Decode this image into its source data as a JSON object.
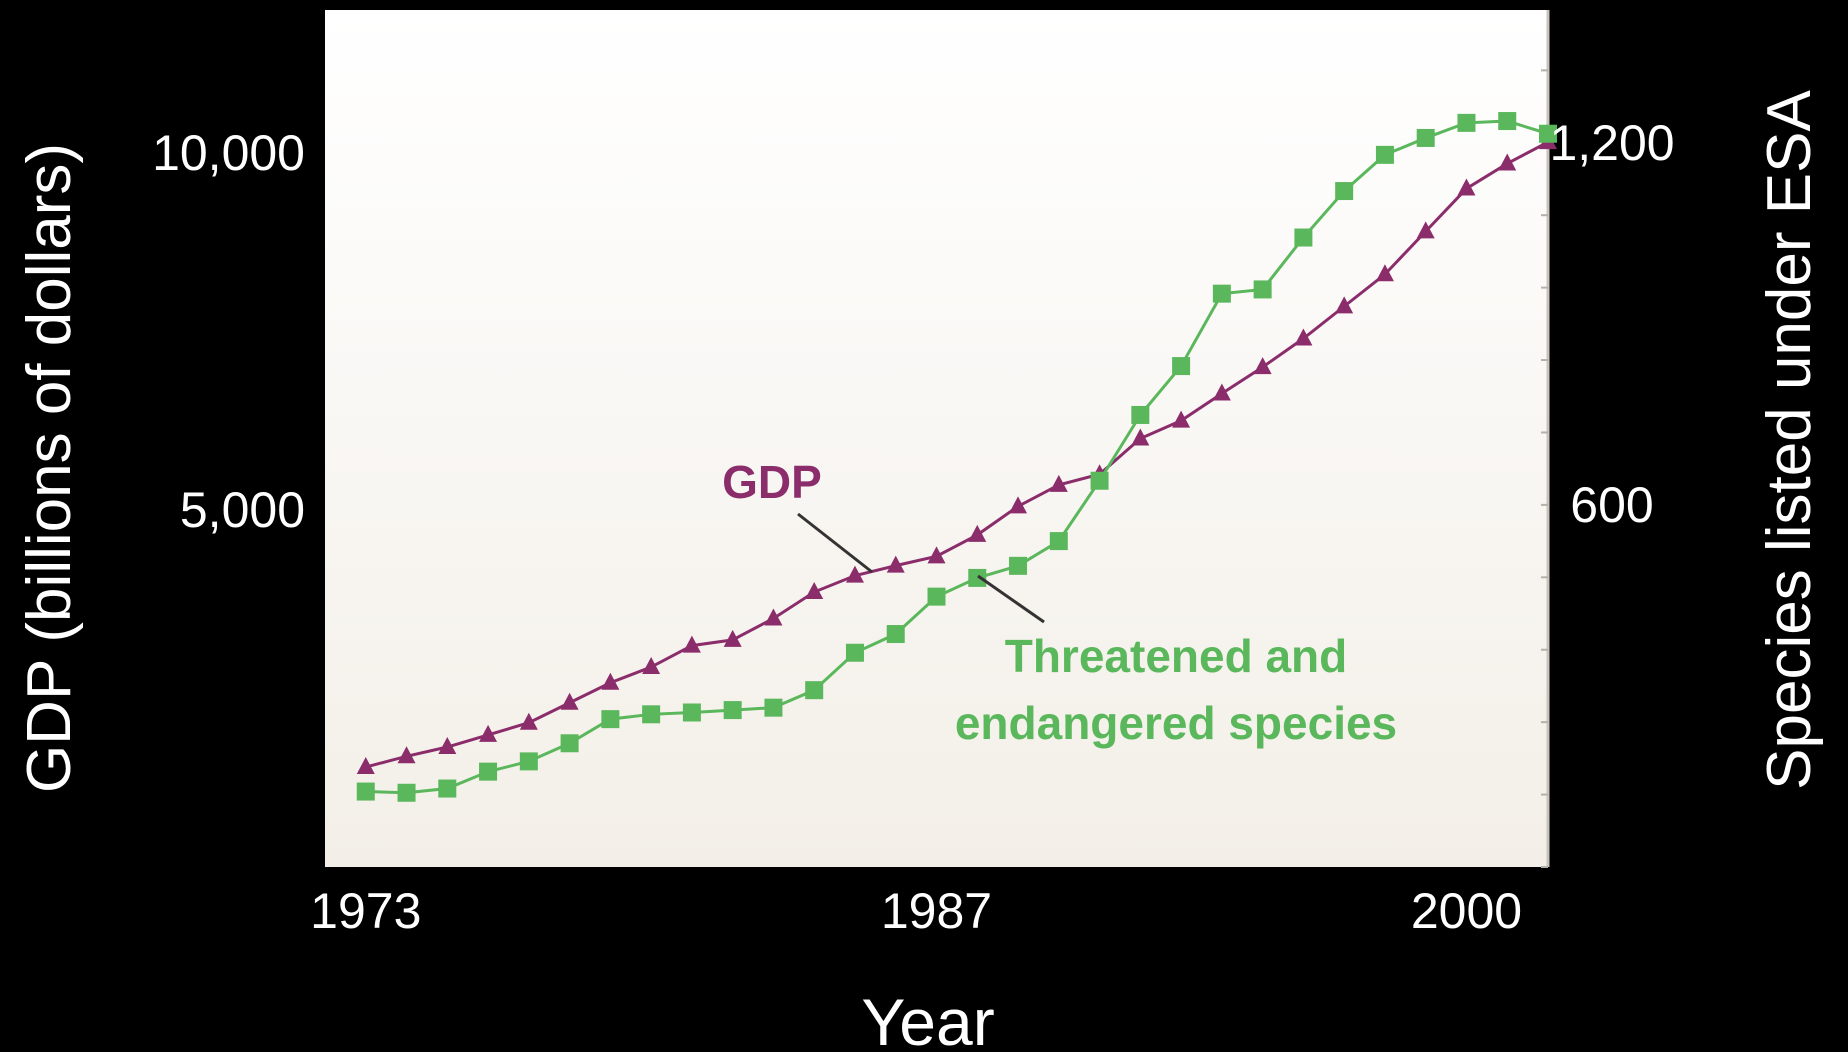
{
  "chart_data": {
    "type": "line",
    "xlabel": "Year",
    "ylabel_left": "GDP (billions of dollars)",
    "ylabel_right": "Species listed under ESA",
    "x_ticks": [
      "1973",
      "1987",
      "2000"
    ],
    "x_tick_values": [
      1973,
      1987,
      2000
    ],
    "xlim": [
      1972,
      2002
    ],
    "y_left_ticks": [
      "5,000",
      "10,000"
    ],
    "y_left_tick_values": [
      5000,
      10000
    ],
    "ylim_left": [
      0,
      12000
    ],
    "y_right_ticks": [
      "600",
      "1,200"
    ],
    "y_right_tick_values": [
      600,
      1200
    ],
    "ylim_right": [
      0,
      1420
    ],
    "grid": false,
    "legend": "none",
    "colors": {
      "gdp": "#8b2c6b",
      "species": "#5bb75b",
      "plot_bg_top": "#ffffff",
      "plot_bg_bottom": "#f3efe8"
    },
    "x": [
      1973,
      1974,
      1975,
      1976,
      1977,
      1978,
      1979,
      1980,
      1981,
      1982,
      1983,
      1984,
      1985,
      1986,
      1987,
      1988,
      1989,
      1990,
      1991,
      1992,
      1993,
      1994,
      1995,
      1996,
      1997,
      1998,
      1999,
      2000,
      2001,
      2002
    ],
    "series": [
      {
        "name": "GDP",
        "axis": "left",
        "marker": "triangle",
        "values": [
          1400,
          1550,
          1680,
          1850,
          2020,
          2300,
          2580,
          2800,
          3100,
          3180,
          3480,
          3850,
          4080,
          4220,
          4350,
          4650,
          5050,
          5350,
          5500,
          6000,
          6250,
          6630,
          7000,
          7400,
          7850,
          8300,
          8900,
          9500,
          9850,
          10150
        ]
      },
      {
        "name": "Threatened and endangered species",
        "axis": "right",
        "marker": "square",
        "values": [
          125,
          123,
          130,
          158,
          175,
          205,
          245,
          253,
          256,
          260,
          264,
          293,
          355,
          386,
          448,
          479,
          499,
          540,
          640,
          749,
          830,
          950,
          957,
          1043,
          1120,
          1180,
          1208,
          1233,
          1236,
          1215
        ]
      }
    ],
    "annotations": [
      {
        "text": "GDP",
        "series": "GDP"
      },
      {
        "text_lines": [
          "Threatened and",
          "endangered species"
        ],
        "series": "Threatened and endangered species"
      }
    ]
  }
}
